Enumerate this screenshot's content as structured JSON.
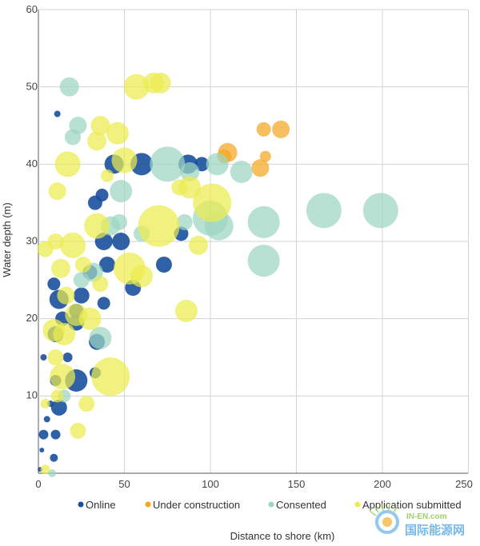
{
  "chart_data": {
    "type": "scatter",
    "xlabel": "Distance to shore (km)",
    "ylabel": "Water depth (m)",
    "xlim": [
      0,
      250
    ],
    "ylim": [
      0,
      60
    ],
    "xticks": [
      "0",
      "50",
      "100",
      "150",
      "200",
      "250"
    ],
    "yticks": [
      "10",
      "20",
      "30",
      "40",
      "50",
      "60"
    ],
    "grid": true,
    "legend_position": "bottom",
    "series": [
      {
        "name": "Online",
        "color": "#1a4f9c",
        "points": [
          {
            "x": 1,
            "y": 0.5,
            "s": 3
          },
          {
            "x": 2,
            "y": 3,
            "s": 3
          },
          {
            "x": 3,
            "y": 5,
            "s": 6
          },
          {
            "x": 5,
            "y": 7,
            "s": 4
          },
          {
            "x": 7,
            "y": 9,
            "s": 4
          },
          {
            "x": 10,
            "y": 5,
            "s": 6
          },
          {
            "x": 9,
            "y": 2,
            "s": 5
          },
          {
            "x": 12,
            "y": 8.5,
            "s": 10
          },
          {
            "x": 10,
            "y": 12,
            "s": 7
          },
          {
            "x": 22,
            "y": 12,
            "s": 14
          },
          {
            "x": 33,
            "y": 13,
            "s": 7
          },
          {
            "x": 10,
            "y": 18,
            "s": 10
          },
          {
            "x": 12,
            "y": 22.5,
            "s": 12
          },
          {
            "x": 14,
            "y": 20,
            "s": 9
          },
          {
            "x": 9,
            "y": 24.5,
            "s": 8
          },
          {
            "x": 25,
            "y": 23,
            "s": 10
          },
          {
            "x": 22,
            "y": 21,
            "s": 9
          },
          {
            "x": 34,
            "y": 17,
            "s": 10
          },
          {
            "x": 30,
            "y": 26,
            "s": 9
          },
          {
            "x": 40,
            "y": 27,
            "s": 10
          },
          {
            "x": 55,
            "y": 24,
            "s": 10
          },
          {
            "x": 73,
            "y": 27,
            "s": 10
          },
          {
            "x": 33,
            "y": 35,
            "s": 9
          },
          {
            "x": 38,
            "y": 30,
            "s": 11
          },
          {
            "x": 48,
            "y": 30,
            "s": 11
          },
          {
            "x": 37,
            "y": 36,
            "s": 8
          },
          {
            "x": 83,
            "y": 31,
            "s": 9
          },
          {
            "x": 44,
            "y": 40,
            "s": 12
          },
          {
            "x": 60,
            "y": 40,
            "s": 14
          },
          {
            "x": 87,
            "y": 40,
            "s": 12
          },
          {
            "x": 95,
            "y": 40,
            "s": 9
          },
          {
            "x": 11,
            "y": 46.5,
            "s": 4
          },
          {
            "x": 3,
            "y": 15,
            "s": 4
          },
          {
            "x": 17,
            "y": 15,
            "s": 6
          },
          {
            "x": 22,
            "y": 19.5,
            "s": 10
          },
          {
            "x": 38,
            "y": 22,
            "s": 8
          }
        ]
      },
      {
        "name": "Under construction",
        "color": "#f5a623",
        "points": [
          {
            "x": 110,
            "y": 41.5,
            "s": 12
          },
          {
            "x": 108,
            "y": 41,
            "s": 9
          },
          {
            "x": 131,
            "y": 44.5,
            "s": 9
          },
          {
            "x": 141,
            "y": 44.5,
            "s": 11
          },
          {
            "x": 132,
            "y": 41,
            "s": 7
          },
          {
            "x": 129,
            "y": 39.5,
            "s": 11
          }
        ]
      },
      {
        "name": "Consented",
        "color": "#9dd6c2",
        "points": [
          {
            "x": 18,
            "y": 50,
            "s": 12
          },
          {
            "x": 23,
            "y": 45,
            "s": 11
          },
          {
            "x": 20,
            "y": 43.5,
            "s": 10
          },
          {
            "x": 48,
            "y": 36.5,
            "s": 14
          },
          {
            "x": 42,
            "y": 32,
            "s": 12
          },
          {
            "x": 47,
            "y": 32.5,
            "s": 10
          },
          {
            "x": 75,
            "y": 40,
            "s": 22
          },
          {
            "x": 88,
            "y": 39,
            "s": 12
          },
          {
            "x": 100,
            "y": 33,
            "s": 22
          },
          {
            "x": 105,
            "y": 32,
            "s": 18
          },
          {
            "x": 104,
            "y": 40,
            "s": 14
          },
          {
            "x": 118,
            "y": 39,
            "s": 14
          },
          {
            "x": 131,
            "y": 32.5,
            "s": 20
          },
          {
            "x": 131,
            "y": 27.5,
            "s": 20
          },
          {
            "x": 166,
            "y": 34,
            "s": 22
          },
          {
            "x": 199,
            "y": 34,
            "s": 22
          },
          {
            "x": 85,
            "y": 32.5,
            "s": 10
          },
          {
            "x": 32,
            "y": 26,
            "s": 12
          },
          {
            "x": 36,
            "y": 17.5,
            "s": 14
          },
          {
            "x": 25,
            "y": 25,
            "s": 10
          },
          {
            "x": 60,
            "y": 31,
            "s": 10
          },
          {
            "x": 15,
            "y": 10,
            "s": 8
          },
          {
            "x": 8,
            "y": 0,
            "s": 5
          }
        ]
      },
      {
        "name": "Application submitted",
        "color": "#ecec4f",
        "points": [
          {
            "x": 57,
            "y": 50,
            "s": 16
          },
          {
            "x": 67,
            "y": 50.5,
            "s": 13
          },
          {
            "x": 71,
            "y": 50.5,
            "s": 13
          },
          {
            "x": 36,
            "y": 45,
            "s": 12
          },
          {
            "x": 46,
            "y": 44,
            "s": 14
          },
          {
            "x": 34,
            "y": 43,
            "s": 12
          },
          {
            "x": 50,
            "y": 40.5,
            "s": 16
          },
          {
            "x": 17,
            "y": 40,
            "s": 16
          },
          {
            "x": 40,
            "y": 38.5,
            "s": 8
          },
          {
            "x": 11,
            "y": 36.5,
            "s": 11
          },
          {
            "x": 88,
            "y": 37,
            "s": 14
          },
          {
            "x": 82,
            "y": 37,
            "s": 10
          },
          {
            "x": 101,
            "y": 35,
            "s": 24
          },
          {
            "x": 70,
            "y": 32,
            "s": 26
          },
          {
            "x": 34,
            "y": 32,
            "s": 16
          },
          {
            "x": 20,
            "y": 29.5,
            "s": 16
          },
          {
            "x": 4,
            "y": 29,
            "s": 10
          },
          {
            "x": 10,
            "y": 30,
            "s": 10
          },
          {
            "x": 93,
            "y": 29.5,
            "s": 12
          },
          {
            "x": 53,
            "y": 26.5,
            "s": 20
          },
          {
            "x": 60,
            "y": 25.5,
            "s": 14
          },
          {
            "x": 13,
            "y": 26.5,
            "s": 12
          },
          {
            "x": 26,
            "y": 27,
            "s": 10
          },
          {
            "x": 36,
            "y": 24.5,
            "s": 10
          },
          {
            "x": 16,
            "y": 23,
            "s": 11
          },
          {
            "x": 22,
            "y": 20.5,
            "s": 14
          },
          {
            "x": 30,
            "y": 20,
            "s": 14
          },
          {
            "x": 9,
            "y": 18.5,
            "s": 14
          },
          {
            "x": 15,
            "y": 18,
            "s": 14
          },
          {
            "x": 86,
            "y": 21,
            "s": 14
          },
          {
            "x": 42,
            "y": 12.5,
            "s": 24
          },
          {
            "x": 14,
            "y": 12.5,
            "s": 16
          },
          {
            "x": 10,
            "y": 15,
            "s": 10
          },
          {
            "x": 28,
            "y": 9,
            "s": 10
          },
          {
            "x": 23,
            "y": 5.5,
            "s": 10
          },
          {
            "x": 4,
            "y": 9,
            "s": 6
          },
          {
            "x": 4,
            "y": 0.5,
            "s": 6
          },
          {
            "x": 11,
            "y": 10,
            "s": 8
          }
        ]
      }
    ]
  }
}
